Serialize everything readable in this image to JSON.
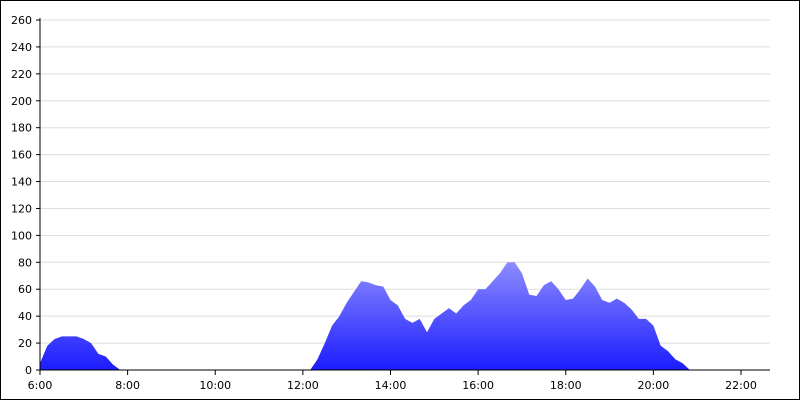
{
  "chart_data": {
    "type": "area",
    "x": [
      360,
      370,
      380,
      390,
      400,
      410,
      420,
      430,
      440,
      450,
      460,
      470,
      730,
      740,
      750,
      760,
      770,
      780,
      790,
      800,
      810,
      820,
      830,
      840,
      850,
      860,
      870,
      880,
      890,
      900,
      910,
      920,
      930,
      940,
      950,
      960,
      970,
      980,
      990,
      1000,
      1010,
      1020,
      1030,
      1040,
      1050,
      1060,
      1070,
      1080,
      1090,
      1100,
      1110,
      1120,
      1130,
      1140,
      1150,
      1160,
      1170,
      1180,
      1190,
      1200,
      1210,
      1220,
      1230,
      1240,
      1250
    ],
    "values": [
      5,
      18,
      23,
      25,
      25,
      25,
      23,
      20,
      12,
      10,
      4,
      0,
      0,
      8,
      20,
      33,
      40,
      50,
      58,
      66,
      65,
      63,
      62,
      52,
      48,
      38,
      35,
      38,
      28,
      38,
      42,
      46,
      42,
      48,
      52,
      60,
      60,
      66,
      72,
      80,
      80,
      72,
      56,
      55,
      63,
      66,
      60,
      52,
      53,
      60,
      68,
      62,
      52,
      50,
      53,
      50,
      45,
      38,
      38,
      33,
      18,
      14,
      8,
      5,
      0
    ],
    "gradient": [
      "#8c8cff",
      "#1c1cff"
    ],
    "xlim": [
      360,
      1360
    ],
    "ylim": [
      0,
      260
    ],
    "xticks": [
      {
        "value": 360,
        "label": "6:00"
      },
      {
        "value": 480,
        "label": "8:00"
      },
      {
        "value": 600,
        "label": "10:00"
      },
      {
        "value": 720,
        "label": "12:00"
      },
      {
        "value": 840,
        "label": "14:00"
      },
      {
        "value": 960,
        "label": "16:00"
      },
      {
        "value": 1080,
        "label": "18:00"
      },
      {
        "value": 1200,
        "label": "20:00"
      },
      {
        "value": 1320,
        "label": "22:00"
      }
    ],
    "yticks": [
      0,
      20,
      40,
      60,
      80,
      100,
      120,
      140,
      160,
      180,
      200,
      220,
      240,
      260
    ],
    "grid": true
  }
}
